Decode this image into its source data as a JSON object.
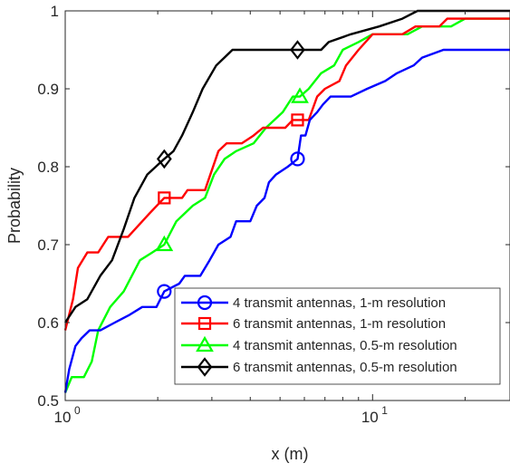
{
  "chart_data": {
    "type": "line",
    "title": "",
    "xlabel": "x (m)",
    "ylabel": "Probability",
    "xscale": "log",
    "xlim": [
      1,
      28
    ],
    "ylim": [
      0.5,
      1
    ],
    "x_ticks": [
      {
        "value": 1,
        "base": "10",
        "exp": "0"
      },
      {
        "value": 10,
        "base": "10",
        "exp": "1"
      }
    ],
    "y_ticks": [
      {
        "value": 0.5,
        "label": "0.5"
      },
      {
        "value": 0.6,
        "label": "0.6"
      },
      {
        "value": 0.7,
        "label": "0.7"
      },
      {
        "value": 0.8,
        "label": "0.8"
      },
      {
        "value": 0.9,
        "label": "0.9"
      },
      {
        "value": 1.0,
        "label": "1"
      }
    ],
    "grid": false,
    "legend_position": "bottom-right",
    "series": [
      {
        "name": "4 transmit antennas, 1-m resolution",
        "color": "#0000ff",
        "marker": "circle",
        "marker_points": [
          [
            2.1,
            0.64
          ],
          [
            5.7,
            0.81
          ]
        ],
        "points": [
          [
            1.0,
            0.51
          ],
          [
            1.03,
            0.54
          ],
          [
            1.08,
            0.57
          ],
          [
            1.13,
            0.58
          ],
          [
            1.2,
            0.59
          ],
          [
            1.3,
            0.59
          ],
          [
            1.45,
            0.6
          ],
          [
            1.62,
            0.61
          ],
          [
            1.78,
            0.62
          ],
          [
            1.98,
            0.62
          ],
          [
            2.1,
            0.64
          ],
          [
            2.35,
            0.65
          ],
          [
            2.45,
            0.66
          ],
          [
            2.75,
            0.66
          ],
          [
            2.95,
            0.68
          ],
          [
            3.15,
            0.7
          ],
          [
            3.45,
            0.71
          ],
          [
            3.6,
            0.73
          ],
          [
            4.0,
            0.73
          ],
          [
            4.2,
            0.75
          ],
          [
            4.45,
            0.76
          ],
          [
            4.6,
            0.78
          ],
          [
            4.85,
            0.79
          ],
          [
            5.3,
            0.8
          ],
          [
            5.7,
            0.81
          ],
          [
            5.85,
            0.84
          ],
          [
            6.05,
            0.84
          ],
          [
            6.25,
            0.86
          ],
          [
            6.6,
            0.87
          ],
          [
            6.9,
            0.88
          ],
          [
            7.3,
            0.89
          ],
          [
            8.5,
            0.89
          ],
          [
            9.6,
            0.9
          ],
          [
            11.0,
            0.91
          ],
          [
            12.0,
            0.92
          ],
          [
            13.6,
            0.93
          ],
          [
            14.5,
            0.94
          ],
          [
            17.0,
            0.95
          ],
          [
            28.0,
            0.95
          ]
        ]
      },
      {
        "name": "6 transmit antennas, 1-m resolution",
        "color": "#ff0000",
        "marker": "square",
        "marker_points": [
          [
            2.1,
            0.76
          ],
          [
            5.7,
            0.86
          ]
        ],
        "points": [
          [
            1.0,
            0.59
          ],
          [
            1.06,
            0.63
          ],
          [
            1.1,
            0.67
          ],
          [
            1.18,
            0.69
          ],
          [
            1.28,
            0.69
          ],
          [
            1.38,
            0.71
          ],
          [
            1.6,
            0.71
          ],
          [
            1.88,
            0.74
          ],
          [
            2.1,
            0.76
          ],
          [
            2.4,
            0.76
          ],
          [
            2.5,
            0.77
          ],
          [
            2.85,
            0.77
          ],
          [
            3.15,
            0.82
          ],
          [
            3.35,
            0.83
          ],
          [
            3.75,
            0.83
          ],
          [
            4.1,
            0.84
          ],
          [
            4.4,
            0.85
          ],
          [
            5.2,
            0.85
          ],
          [
            5.5,
            0.86
          ],
          [
            6.2,
            0.86
          ],
          [
            6.6,
            0.89
          ],
          [
            7.0,
            0.9
          ],
          [
            7.8,
            0.91
          ],
          [
            8.2,
            0.93
          ],
          [
            9.0,
            0.95
          ],
          [
            10.0,
            0.97
          ],
          [
            12.5,
            0.97
          ],
          [
            13.8,
            0.98
          ],
          [
            16.5,
            0.98
          ],
          [
            17.5,
            0.99
          ],
          [
            28.0,
            0.99
          ]
        ]
      },
      {
        "name": "4 transmit antennas, 0.5-m resolution",
        "color": "#00ff00",
        "marker": "triangle",
        "marker_points": [
          [
            2.1,
            0.7
          ],
          [
            5.8,
            0.89
          ]
        ],
        "points": [
          [
            1.0,
            0.51
          ],
          [
            1.05,
            0.53
          ],
          [
            1.15,
            0.53
          ],
          [
            1.22,
            0.55
          ],
          [
            1.28,
            0.59
          ],
          [
            1.4,
            0.62
          ],
          [
            1.55,
            0.64
          ],
          [
            1.75,
            0.68
          ],
          [
            1.92,
            0.69
          ],
          [
            2.1,
            0.7
          ],
          [
            2.3,
            0.73
          ],
          [
            2.6,
            0.75
          ],
          [
            2.85,
            0.76
          ],
          [
            3.05,
            0.79
          ],
          [
            3.3,
            0.81
          ],
          [
            3.6,
            0.82
          ],
          [
            4.1,
            0.83
          ],
          [
            4.5,
            0.85
          ],
          [
            5.1,
            0.87
          ],
          [
            5.5,
            0.89
          ],
          [
            5.8,
            0.89
          ],
          [
            6.2,
            0.9
          ],
          [
            6.8,
            0.92
          ],
          [
            7.5,
            0.93
          ],
          [
            8.0,
            0.95
          ],
          [
            9.0,
            0.96
          ],
          [
            10.0,
            0.97
          ],
          [
            13.0,
            0.97
          ],
          [
            14.5,
            0.98
          ],
          [
            18.0,
            0.98
          ],
          [
            20.0,
            0.99
          ],
          [
            28.0,
            0.99
          ]
        ]
      },
      {
        "name": "6 transmit antennas, 0.5-m resolution",
        "color": "#000000",
        "marker": "diamond",
        "marker_points": [
          [
            2.1,
            0.81
          ],
          [
            5.7,
            0.95
          ]
        ],
        "points": [
          [
            1.0,
            0.6
          ],
          [
            1.08,
            0.62
          ],
          [
            1.18,
            0.63
          ],
          [
            1.3,
            0.66
          ],
          [
            1.42,
            0.68
          ],
          [
            1.55,
            0.72
          ],
          [
            1.68,
            0.76
          ],
          [
            1.85,
            0.79
          ],
          [
            2.1,
            0.81
          ],
          [
            2.25,
            0.82
          ],
          [
            2.4,
            0.84
          ],
          [
            2.6,
            0.87
          ],
          [
            2.8,
            0.9
          ],
          [
            3.1,
            0.93
          ],
          [
            3.5,
            0.95
          ],
          [
            5.7,
            0.95
          ],
          [
            6.8,
            0.95
          ],
          [
            7.2,
            0.96
          ],
          [
            8.5,
            0.97
          ],
          [
            10.5,
            0.98
          ],
          [
            12.5,
            0.99
          ],
          [
            14.0,
            1.0
          ],
          [
            28.0,
            1.0
          ]
        ]
      }
    ]
  }
}
